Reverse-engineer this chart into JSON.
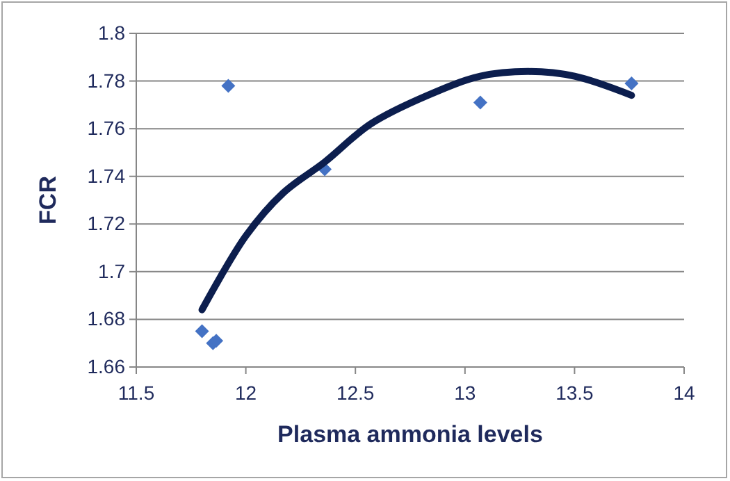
{
  "chart_data": {
    "type": "scatter",
    "xlabel": "Plasma ammonia levels",
    "ylabel": "FCR",
    "xlim": [
      11.5,
      14
    ],
    "xticks": [
      11.5,
      12,
      12.5,
      13,
      13.5,
      14
    ],
    "ylim": [
      1.66,
      1.8
    ],
    "yticks": [
      1.66,
      1.68,
      1.7,
      1.72,
      1.74,
      1.76,
      1.78,
      1.8
    ],
    "grid": "y",
    "series": [
      {
        "marker": "diamond",
        "color": "#4472c4",
        "x": [
          11.8,
          11.85,
          11.865,
          11.92,
          12.36,
          13.07,
          13.76
        ],
        "values": [
          1.675,
          1.67,
          1.671,
          1.778,
          1.743,
          1.771,
          1.779
        ]
      },
      {
        "type": "line",
        "marker": "none",
        "color": "#0c1e4e",
        "x": [
          11.8,
          12.0,
          12.17,
          12.36,
          12.57,
          12.83,
          13.07,
          13.29,
          13.5,
          13.76
        ],
        "values": [
          1.684,
          1.715,
          1.733,
          1.746,
          1.762,
          1.774,
          1.782,
          1.784,
          1.782,
          1.774
        ]
      }
    ]
  }
}
